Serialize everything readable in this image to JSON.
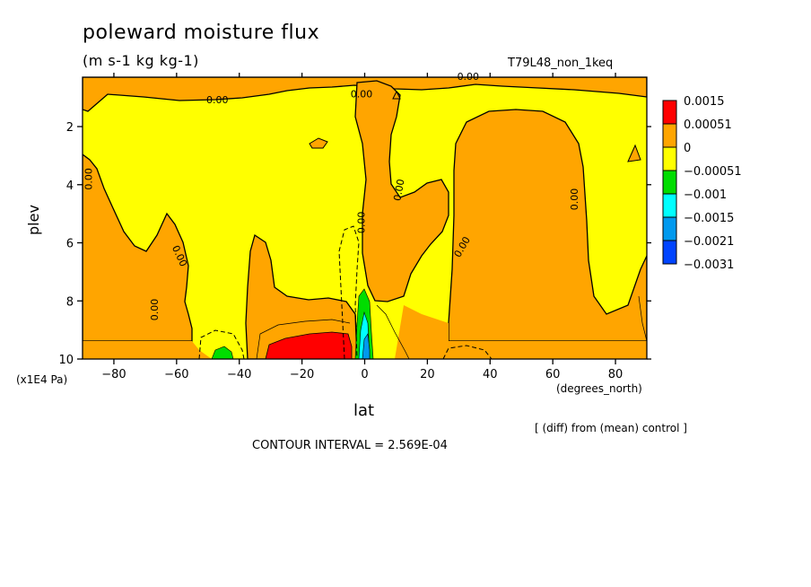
{
  "chart_data": {
    "type": "contour",
    "title": "poleward moisture flux",
    "units": "(m s-1 kg kg-1)",
    "run_label": "T79L48_non_1keq",
    "xlabel": "lat",
    "x_units": "(degrees_north)",
    "ylabel": "plev",
    "y_units": "(x1E4 Pa)",
    "xlim": [
      -90,
      90
    ],
    "ylim": [
      10,
      0.3
    ],
    "x_ticks": [
      -80,
      -60,
      -40,
      -20,
      0,
      20,
      40,
      60,
      80
    ],
    "y_ticks": [
      2,
      4,
      6,
      8,
      10
    ],
    "contour_labels": [
      "0.00",
      "0.00",
      "0.00",
      "0.00",
      "0.00",
      "0.00",
      "0.00",
      "0.00",
      "0.00",
      "0.00"
    ],
    "colorbar": [
      {
        "label": "0.0015",
        "color": "#ff0000"
      },
      {
        "label": "0.00051",
        "color": "#ffa500"
      },
      {
        "label": "0",
        "color": "#ffff00"
      },
      {
        "label": "-0.00051",
        "color": "#00dd00"
      },
      {
        "label": "-0.001",
        "color": "#00ffff"
      },
      {
        "label": "-0.0015",
        "color": "#0099ee"
      },
      {
        "label": "-0.0021",
        "color": "#0044ff"
      },
      {
        "label": "-0.0031",
        "color": ""
      }
    ],
    "note": "[ (diff) from (mean) control ]",
    "contour_interval": "CONTOUR INTERVAL = 2.569E-04"
  }
}
